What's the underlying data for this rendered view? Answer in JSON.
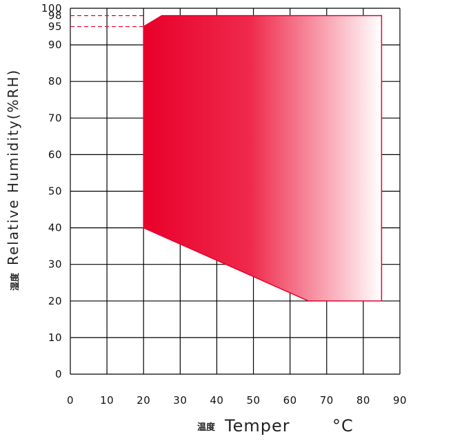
{
  "chart_data": {
    "type": "area",
    "xlabel": "Temper",
    "xlabel_cn": "温度",
    "xlabel_unit": "°C",
    "ylabel": "Relative Humidity(%RH)",
    "ylabel_cn": "湿度",
    "xlim": [
      0,
      90
    ],
    "ylim": [
      0,
      100
    ],
    "x_ticks": [
      "0",
      "10",
      "20",
      "30",
      "40",
      "50",
      "60",
      "70",
      "80",
      "90"
    ],
    "y_ticks": [
      "0",
      "10",
      "20",
      "30",
      "40",
      "50",
      "60",
      "70",
      "80",
      "90",
      "95",
      "98",
      "100"
    ],
    "grid": true,
    "operating_region": {
      "name": "",
      "points": [
        {
          "x": 20,
          "y": 40
        },
        {
          "x": 20,
          "y": 95
        },
        {
          "x": 25,
          "y": 98
        },
        {
          "x": 85,
          "y": 98
        },
        {
          "x": 85,
          "y": 20
        },
        {
          "x": 65,
          "y": 20
        },
        {
          "x": 20,
          "y": 40
        }
      ],
      "color": "#e8002a"
    },
    "reference_lines": [
      {
        "y": 98,
        "style": "dashed",
        "color": "#e8002a"
      },
      {
        "y": 95,
        "style": "dashed",
        "color": "#e8002a"
      }
    ]
  }
}
